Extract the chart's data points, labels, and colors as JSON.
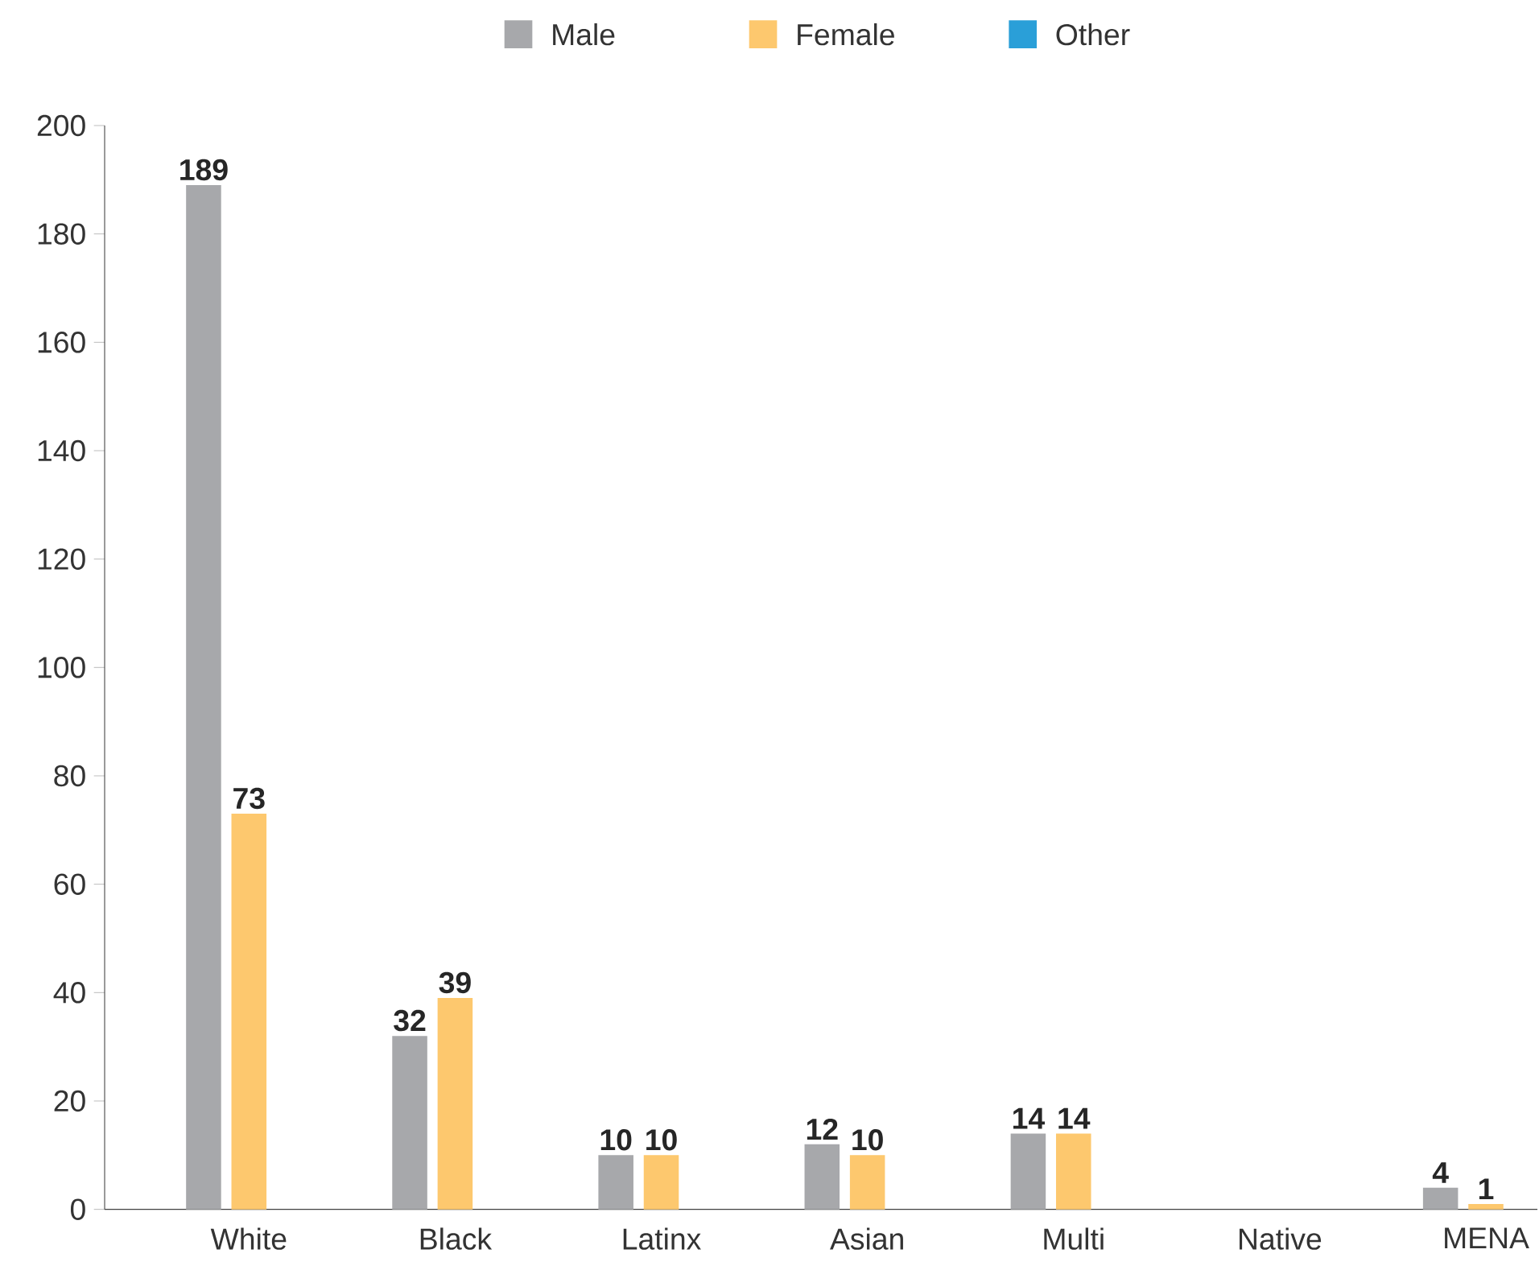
{
  "chart_data": {
    "type": "bar",
    "categories": [
      "White",
      "Black",
      "Latinx",
      "Asian",
      "Multi",
      "Native",
      "MENA"
    ],
    "series": [
      {
        "name": "Male",
        "color": "#a7a8ab",
        "values": [
          189,
          32,
          10,
          12,
          14,
          null,
          4
        ]
      },
      {
        "name": "Female",
        "color": "#fdc86e",
        "values": [
          73,
          39,
          10,
          10,
          14,
          null,
          1
        ]
      },
      {
        "name": "Other",
        "color": "#2a9fd8",
        "values": [
          null,
          null,
          null,
          null,
          null,
          null,
          null
        ]
      }
    ],
    "ylim": [
      0,
      200
    ],
    "yticks": [
      0,
      20,
      40,
      60,
      80,
      100,
      120,
      140,
      160,
      180,
      200
    ],
    "data_labels": true,
    "legend": "top",
    "grid": false
  }
}
